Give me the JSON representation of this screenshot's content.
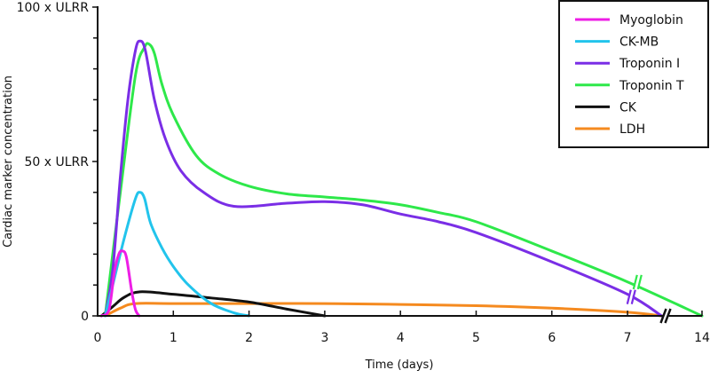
{
  "chart_data": {
    "type": "line",
    "title": "",
    "xlabel": "Time (days)",
    "ylabel": "Cardiac marker concentration",
    "x_ticks": [
      0,
      1,
      2,
      3,
      4,
      5,
      6,
      7,
      14
    ],
    "x_tick_labels": [
      "0",
      "1",
      "2",
      "3",
      "4",
      "5",
      "6",
      "7",
      "14"
    ],
    "x_axis_break": "between 7 and 14",
    "y_ticks": [
      0,
      50,
      100
    ],
    "y_tick_labels": [
      "0",
      "50 x ULRR",
      "100 x ULRR"
    ],
    "y_minor_ticks": [
      10,
      20,
      30,
      40,
      60,
      70,
      80,
      90
    ],
    "xlim": [
      0,
      14
    ],
    "ylim": [
      0,
      100
    ],
    "grid": false,
    "legend_position": "top-right",
    "series": [
      {
        "name": "Myoglobin",
        "color": "#ee1ee6",
        "points": [
          [
            0.05,
            0
          ],
          [
            0.15,
            2
          ],
          [
            0.22,
            14
          ],
          [
            0.28,
            20
          ],
          [
            0.33,
            21
          ],
          [
            0.38,
            19
          ],
          [
            0.45,
            8
          ],
          [
            0.5,
            2
          ],
          [
            0.55,
            0
          ]
        ]
      },
      {
        "name": "CK-MB",
        "color": "#22c4ec",
        "points": [
          [
            0.1,
            0
          ],
          [
            0.2,
            10
          ],
          [
            0.35,
            25
          ],
          [
            0.5,
            38
          ],
          [
            0.56,
            40
          ],
          [
            0.62,
            38
          ],
          [
            0.7,
            30
          ],
          [
            0.85,
            22
          ],
          [
            1,
            16
          ],
          [
            1.2,
            10
          ],
          [
            1.5,
            4
          ],
          [
            1.8,
            1
          ],
          [
            2,
            0
          ]
        ]
      },
      {
        "name": "Troponin I",
        "color": "#7a2ee6",
        "break_mark": true,
        "points": [
          [
            0.1,
            0
          ],
          [
            0.2,
            15
          ],
          [
            0.3,
            45
          ],
          [
            0.4,
            70
          ],
          [
            0.5,
            86
          ],
          [
            0.56,
            89
          ],
          [
            0.63,
            86
          ],
          [
            0.75,
            70
          ],
          [
            0.9,
            57
          ],
          [
            1.1,
            47
          ],
          [
            1.4,
            40
          ],
          [
            1.8,
            35.5
          ],
          [
            2.5,
            36.5
          ],
          [
            3,
            37
          ],
          [
            3.5,
            36
          ],
          [
            4,
            33
          ],
          [
            4.5,
            30.5
          ],
          [
            5,
            27
          ],
          [
            6,
            17.5
          ],
          [
            7,
            7
          ],
          [
            10.2,
            0
          ]
        ]
      },
      {
        "name": "Troponin T",
        "color": "#2ee84a",
        "break_mark": true,
        "points": [
          [
            0.1,
            0
          ],
          [
            0.3,
            40
          ],
          [
            0.5,
            78
          ],
          [
            0.62,
            87
          ],
          [
            0.68,
            88
          ],
          [
            0.75,
            85
          ],
          [
            0.85,
            75
          ],
          [
            1,
            65
          ],
          [
            1.3,
            52
          ],
          [
            1.6,
            46
          ],
          [
            2,
            42
          ],
          [
            2.5,
            39.5
          ],
          [
            3,
            38.5
          ],
          [
            3.5,
            37.5
          ],
          [
            4,
            36
          ],
          [
            4.5,
            33.5
          ],
          [
            5,
            30.5
          ],
          [
            6,
            21
          ],
          [
            7,
            11
          ],
          [
            14,
            0
          ]
        ]
      },
      {
        "name": "CK",
        "color": "#111111",
        "points": [
          [
            0.05,
            0
          ],
          [
            0.2,
            3
          ],
          [
            0.35,
            6
          ],
          [
            0.56,
            7.8
          ],
          [
            1,
            7
          ],
          [
            1.5,
            5.8
          ],
          [
            2,
            4.5
          ],
          [
            2.5,
            2.2
          ],
          [
            3,
            0
          ]
        ]
      },
      {
        "name": "LDH",
        "color": "#f58a1f",
        "points": [
          [
            0.1,
            0
          ],
          [
            0.3,
            2.5
          ],
          [
            0.5,
            4
          ],
          [
            1,
            4
          ],
          [
            2,
            4
          ],
          [
            3,
            4
          ],
          [
            4,
            3.7
          ],
          [
            5,
            3.3
          ],
          [
            6,
            2.5
          ],
          [
            7,
            1.2
          ],
          [
            10.2,
            0
          ]
        ]
      }
    ]
  }
}
